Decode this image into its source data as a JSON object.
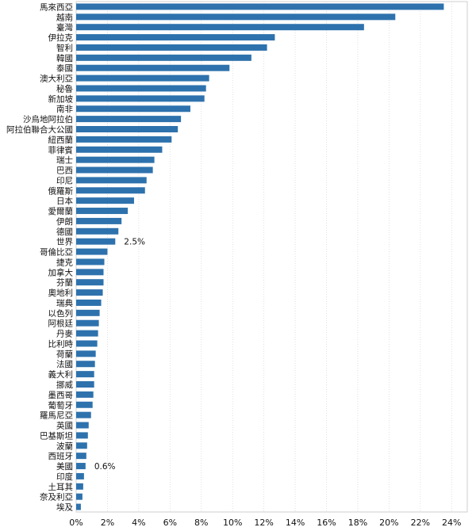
{
  "chart_data": {
    "type": "bar",
    "orientation": "horizontal",
    "title": "",
    "xlabel": "",
    "ylabel": "",
    "xlim": [
      0,
      25
    ],
    "x_tick_values": [
      0,
      2,
      4,
      6,
      8,
      10,
      12,
      14,
      16,
      18,
      20,
      22,
      24
    ],
    "x_tick_labels": [
      "0%",
      "2%",
      "4%",
      "6%",
      "8%",
      "10%",
      "12%",
      "14%",
      "16%",
      "18%",
      "20%",
      "22%",
      "24%"
    ],
    "grid": "vertical dotted",
    "legend": "none",
    "bar_color": "#2e72ad",
    "categories": [
      "馬來西亞",
      "越南",
      "臺灣",
      "伊拉克",
      "智利",
      "韓國",
      "泰國",
      "澳大利亞",
      "秘魯",
      "新加坡",
      "南非",
      "沙烏地阿拉伯",
      "阿拉伯聯合大公國",
      "紐西蘭",
      "菲律賓",
      "瑞士",
      "巴西",
      "印尼",
      "俄羅斯",
      "日本",
      "愛爾蘭",
      "伊朗",
      "德國",
      "世界",
      "哥倫比亞",
      "捷克",
      "加拿大",
      "芬蘭",
      "奧地利",
      "瑞典",
      "以色列",
      "阿根廷",
      "丹麥",
      "比利時",
      "荷蘭",
      "法國",
      "義大利",
      "挪威",
      "墨西哥",
      "葡萄牙",
      "羅馬尼亞",
      "英國",
      "巴基斯坦",
      "波蘭",
      "西班牙",
      "美國",
      "印度",
      "土耳其",
      "奈及利亞",
      "埃及"
    ],
    "values": [
      23.5,
      20.4,
      18.4,
      12.7,
      12.2,
      11.2,
      9.8,
      8.5,
      8.3,
      8.2,
      7.3,
      6.7,
      6.5,
      6.1,
      5.5,
      5.0,
      4.9,
      4.5,
      4.4,
      3.7,
      3.3,
      2.9,
      2.7,
      2.5,
      2.0,
      1.8,
      1.75,
      1.75,
      1.7,
      1.6,
      1.5,
      1.45,
      1.4,
      1.35,
      1.25,
      1.2,
      1.15,
      1.15,
      1.1,
      1.05,
      0.95,
      0.8,
      0.75,
      0.7,
      0.65,
      0.6,
      0.5,
      0.45,
      0.4,
      0.3
    ],
    "annotations": [
      {
        "category": "世界",
        "text": "2.5%"
      },
      {
        "category": "美國",
        "text": "0.6%"
      }
    ]
  }
}
